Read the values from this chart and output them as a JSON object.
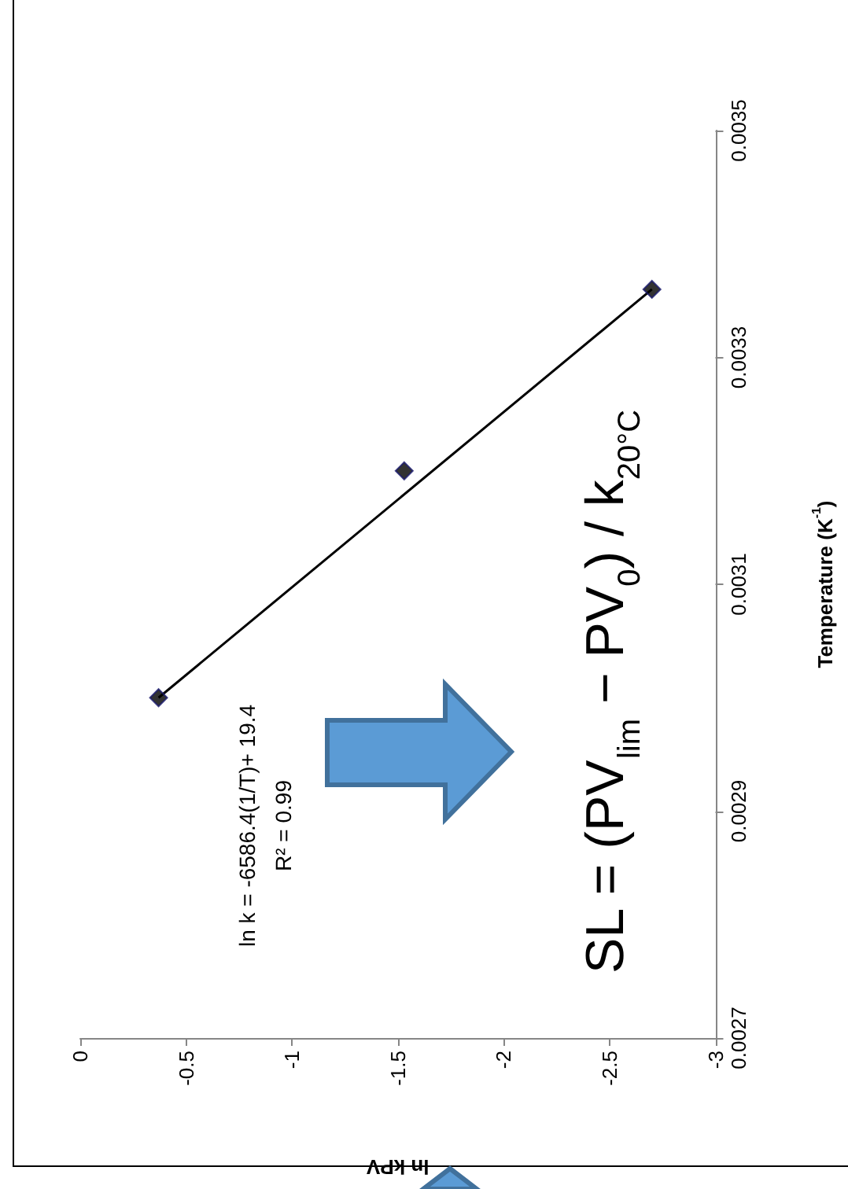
{
  "chart_data": {
    "type": "scatter",
    "xlabel": "ln kPV",
    "y2label": "Temperature (K$^{-1}$)",
    "series": [
      {
        "type": "scatter",
        "color": "#000000",
        "x": [
          -0.37,
          -1.53,
          -2.7
        ],
        "values": [
          0.003,
          0.0032,
          0.00336
        ],
        "marker": "diamond",
        "axis": "y2"
      },
      {
        "type": "line",
        "color": "#000000",
        "x": [
          -0.37,
          -2.7
        ],
        "values": [
          0.003,
          0.00336
        ],
        "marker": "none",
        "line_style": "solid",
        "axis": "y2"
      }
    ],
    "xlim": [
      0,
      -3
    ],
    "xticks": [
      0,
      -0.5,
      -1,
      -1.5,
      -2,
      -2.5,
      -3
    ],
    "y2lim": [
      0.0027,
      0.0035
    ],
    "y2ticks": [
      0.0027,
      0.0029,
      0.0031,
      0.0033,
      0.0035
    ],
    "grid": false,
    "annotations": [
      "ln k = -6586.4(1/T)+ 19.4",
      "R² = 0.99",
      "SL = (PV$_{lim}$ − PV$_{0}$) / k$_{20°C}$"
    ]
  }
}
